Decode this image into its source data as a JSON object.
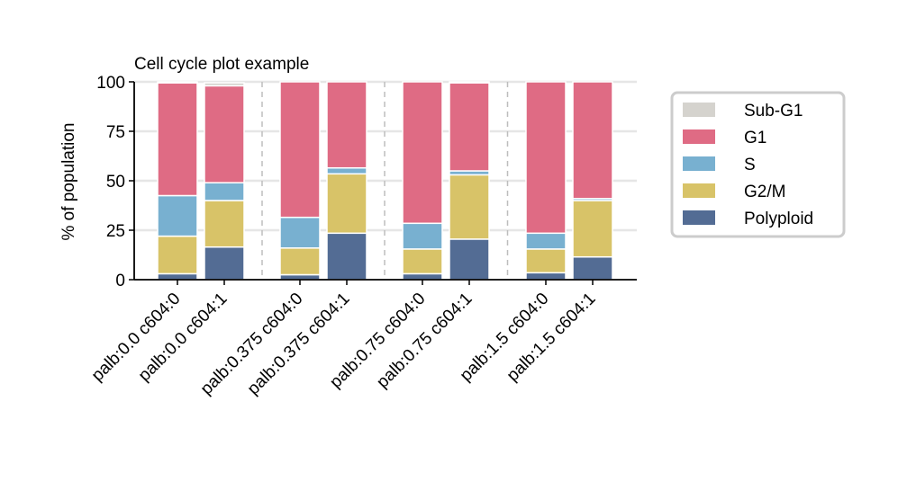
{
  "chart_data": {
    "type": "bar",
    "stacked": true,
    "title": "Cell cycle plot example",
    "ylabel": "% of population",
    "xlabel": "",
    "ylim": [
      0,
      100
    ],
    "yticks": [
      0,
      25,
      50,
      75,
      100
    ],
    "grid": "horizontal",
    "legend_position": "right",
    "categories": [
      "palb:0.0 c604:0",
      "palb:0.0 c604:1",
      "palb:0.375 c604:0",
      "palb:0.375 c604:1",
      "palb:0.75 c604:0",
      "palb:0.75 c604:1",
      "palb:1.5 c604:0",
      "palb:1.5 c604:1"
    ],
    "groups": [
      [
        0,
        1
      ],
      [
        2,
        3
      ],
      [
        4,
        5
      ],
      [
        6,
        7
      ]
    ],
    "series": [
      {
        "name": "Polyploid",
        "color": "#536c94",
        "values": [
          3,
          16.5,
          2.5,
          23.5,
          3,
          20.5,
          3.5,
          11.5
        ]
      },
      {
        "name": "G2/M",
        "color": "#d8c368",
        "values": [
          19,
          23.5,
          13.5,
          30,
          12.5,
          32.5,
          12,
          28.5
        ]
      },
      {
        "name": "S",
        "color": "#78b0d0",
        "values": [
          20.5,
          9,
          15.5,
          3,
          13,
          2,
          8,
          1
        ]
      },
      {
        "name": "G1",
        "color": "#df6b84",
        "values": [
          57,
          49,
          68.5,
          43.5,
          71.5,
          44.5,
          76.5,
          59
        ]
      },
      {
        "name": "Sub-G1",
        "color": "#d5d3ce",
        "values": [
          0.5,
          1.5,
          0,
          0,
          0,
          0.5,
          0,
          0
        ]
      }
    ],
    "legend_order": [
      "Sub-G1",
      "G1",
      "S",
      "G2/M",
      "Polyploid"
    ]
  }
}
